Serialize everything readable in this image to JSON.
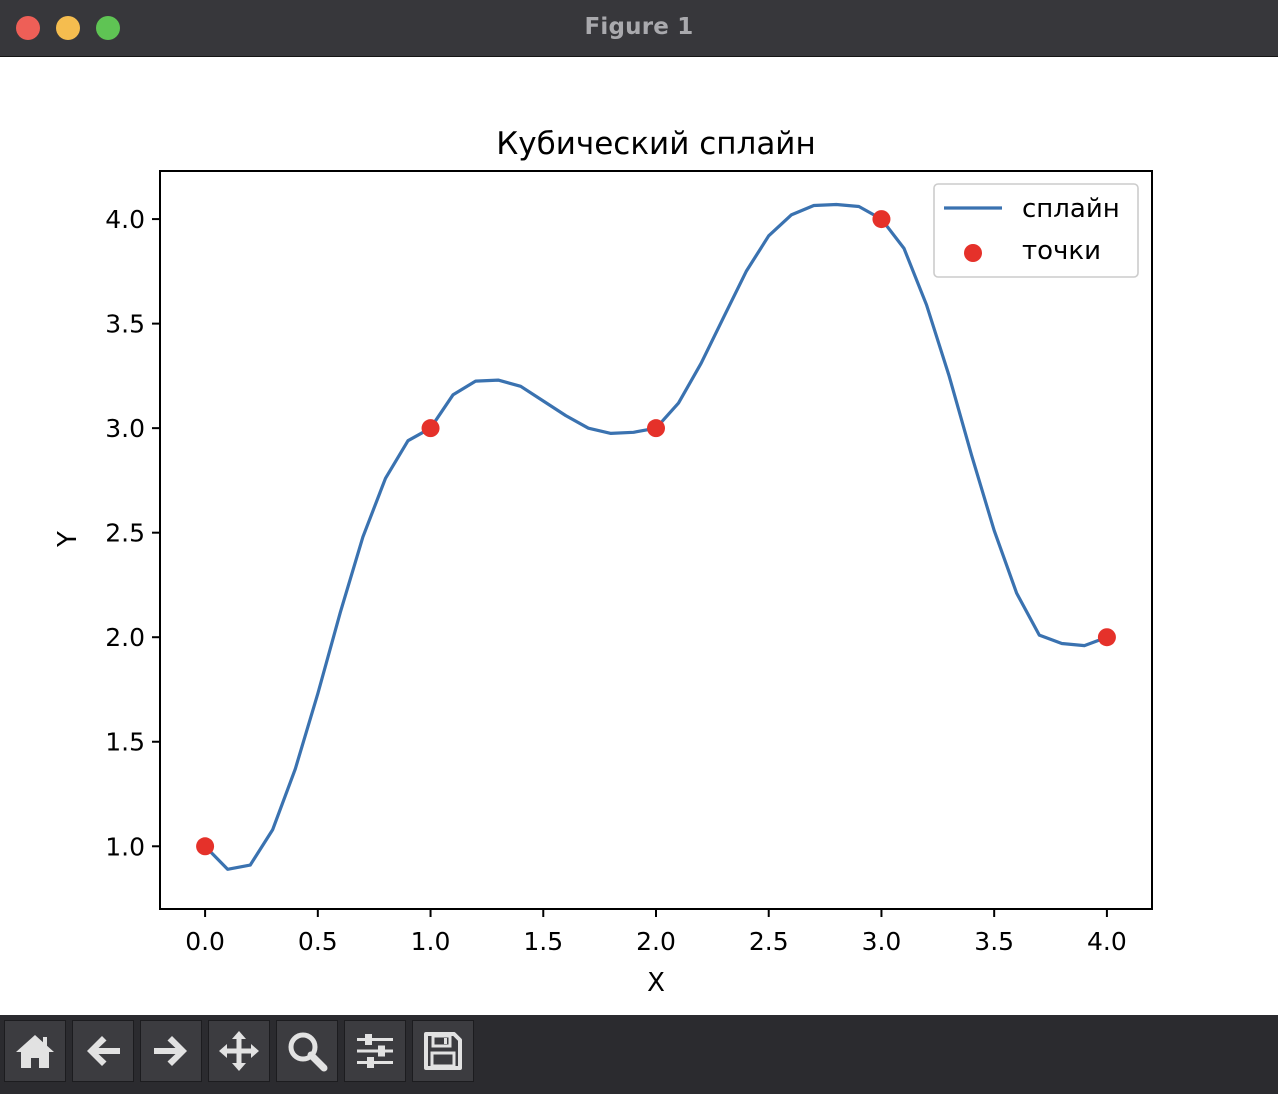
{
  "window": {
    "title": "Figure 1"
  },
  "toolbar": {
    "buttons": [
      {
        "name": "home-button",
        "icon": "home-icon"
      },
      {
        "name": "back-button",
        "icon": "arrow-left-icon"
      },
      {
        "name": "forward-button",
        "icon": "arrow-right-icon"
      },
      {
        "name": "pan-button",
        "icon": "move-arrows-icon"
      },
      {
        "name": "zoom-button",
        "icon": "magnifier-icon"
      },
      {
        "name": "configure-subplots-button",
        "icon": "sliders-icon"
      },
      {
        "name": "save-button",
        "icon": "floppy-disk-icon"
      }
    ]
  },
  "colors": {
    "spline": "#3a72b0",
    "points": "#e5312a"
  },
  "chart_data": {
    "type": "line",
    "title": "Кубический сплайн",
    "xlabel": "X",
    "ylabel": "Y",
    "xlim": [
      -0.2,
      4.2
    ],
    "ylim": [
      0.7,
      4.23
    ],
    "xticks": [
      "0.0",
      "0.5",
      "1.0",
      "1.5",
      "2.0",
      "2.5",
      "3.0",
      "3.5",
      "4.0"
    ],
    "yticks": [
      "1.0",
      "1.5",
      "2.0",
      "2.5",
      "3.0",
      "3.5",
      "4.0"
    ],
    "grid": false,
    "legend_position": "upper right",
    "series": [
      {
        "name": "сплайн",
        "kind": "line",
        "x": [
          0.0,
          0.1,
          0.2,
          0.3,
          0.4,
          0.5,
          0.6,
          0.7,
          0.8,
          0.9,
          1.0,
          1.1,
          1.2,
          1.3,
          1.4,
          1.5,
          1.6,
          1.7,
          1.8,
          1.9,
          2.0,
          2.1,
          2.2,
          2.3,
          2.4,
          2.5,
          2.6,
          2.7,
          2.8,
          2.9,
          3.0,
          3.1,
          3.2,
          3.3,
          3.4,
          3.5,
          3.6,
          3.7,
          3.8,
          3.9,
          4.0
        ],
        "y": [
          1.0,
          0.89,
          0.91,
          1.08,
          1.37,
          1.73,
          2.12,
          2.48,
          2.76,
          2.94,
          3.0,
          3.16,
          3.225,
          3.23,
          3.2,
          3.13,
          3.06,
          3.0,
          2.975,
          2.98,
          3.0,
          3.12,
          3.31,
          3.53,
          3.75,
          3.92,
          4.02,
          4.065,
          4.07,
          4.06,
          4.0,
          3.86,
          3.59,
          3.25,
          2.87,
          2.51,
          2.21,
          2.01,
          1.97,
          1.96,
          2.0
        ]
      },
      {
        "name": "точки",
        "kind": "scatter",
        "x": [
          0,
          1,
          2,
          3,
          4
        ],
        "y": [
          1,
          3,
          3,
          4,
          2
        ]
      }
    ]
  }
}
